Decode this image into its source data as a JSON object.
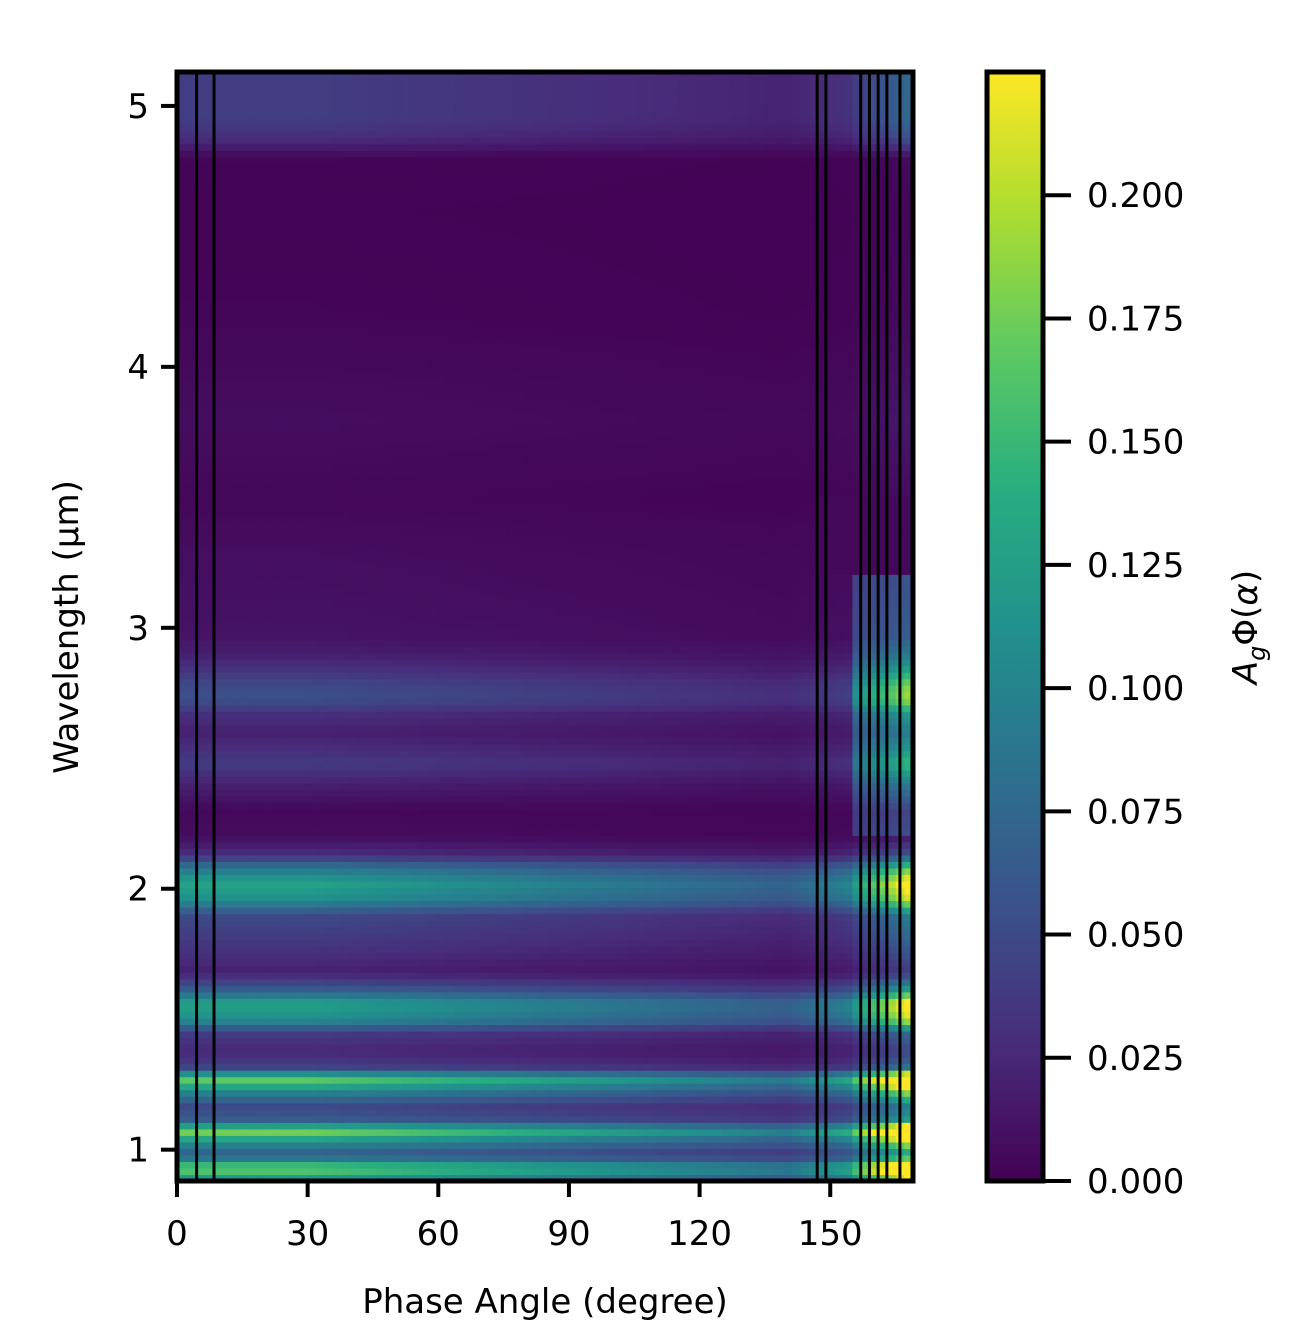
{
  "chart_data": {
    "type": "heatmap",
    "xlabel": "Phase Angle (degree)",
    "ylabel": "Wavelength (µm)",
    "colorbar_label": "A_gΦ(α)",
    "colormap": "viridis",
    "xlim": [
      0,
      169
    ],
    "ylim": [
      0.88,
      5.13
    ],
    "x_ticks": [
      0,
      30,
      60,
      90,
      120,
      150
    ],
    "x_tick_labels": [
      "0",
      "30",
      "60",
      "90",
      "120",
      "150"
    ],
    "y_ticks": [
      1,
      2,
      3,
      4,
      5
    ],
    "y_tick_labels": [
      "1",
      "2",
      "3",
      "4",
      "5"
    ],
    "clim": [
      0.0,
      0.225
    ],
    "colorbar_ticks": [
      0.0,
      0.025,
      0.05,
      0.075,
      0.1,
      0.125,
      0.15,
      0.175,
      0.2
    ],
    "colorbar_tick_labels": [
      "0.000",
      "0.025",
      "0.050",
      "0.075",
      "0.100",
      "0.125",
      "0.150",
      "0.175",
      "0.200"
    ],
    "vertical_lines_x": [
      4.5,
      8.5,
      147,
      149,
      157,
      159,
      161,
      163,
      166
    ],
    "wavelength_profile": {
      "wavelength": [
        0.88,
        0.93,
        0.98,
        1.03,
        1.07,
        1.12,
        1.17,
        1.22,
        1.27,
        1.32,
        1.38,
        1.45,
        1.5,
        1.56,
        1.62,
        1.68,
        1.75,
        1.82,
        1.9,
        1.96,
        2.02,
        2.08,
        2.13,
        2.2,
        2.3,
        2.4,
        2.48,
        2.53,
        2.6,
        2.67,
        2.73,
        2.78,
        2.85,
        2.9,
        2.97,
        3.1,
        3.3,
        3.5,
        3.8,
        4.2,
        4.6,
        4.8,
        4.88,
        4.95,
        5.13
      ],
      "value_at_30deg": [
        0.1,
        0.18,
        0.06,
        0.11,
        0.18,
        0.06,
        0.05,
        0.1,
        0.17,
        0.04,
        0.025,
        0.04,
        0.11,
        0.13,
        0.06,
        0.02,
        0.03,
        0.04,
        0.05,
        0.11,
        0.13,
        0.09,
        0.03,
        0.008,
        0.005,
        0.02,
        0.04,
        0.03,
        0.02,
        0.03,
        0.055,
        0.05,
        0.03,
        0.02,
        0.012,
        0.01,
        0.008,
        0.004,
        0.008,
        0.003,
        0.002,
        0.003,
        0.03,
        0.04,
        0.04
      ]
    }
  }
}
